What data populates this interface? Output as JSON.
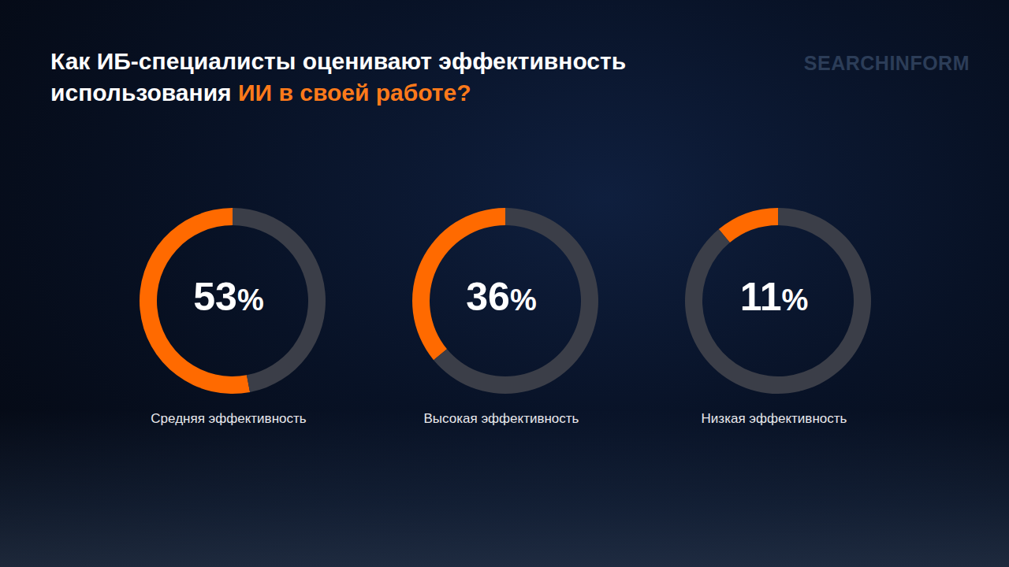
{
  "chart_data": {
    "type": "donut",
    "title": [
      "Как ИБ-специалисты оценивают эффективность использования",
      "ИИ в своей работе?"
    ],
    "categories": [
      "Средняя эффективность",
      "Высокая эффективность",
      "Низкая эффективность"
    ],
    "values": [
      53,
      36,
      11
    ],
    "value_labels": [
      "53%",
      "36%",
      "11%"
    ],
    "color": "#ff6a00",
    "data_labels": true,
    "annotations": [
      "SEARCHINFORM"
    ]
  }
}
